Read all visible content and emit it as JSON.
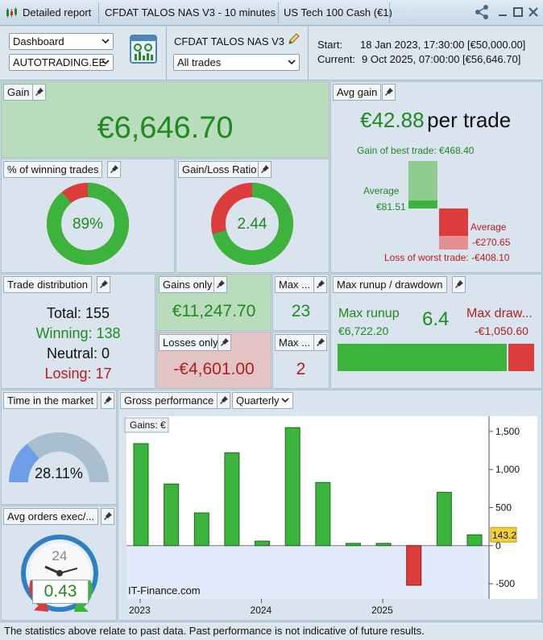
{
  "titlebar": {
    "report": "Detailed report",
    "strategy": "CFDAT TALOS NAS V3 - 10 minutes",
    "instrument": "US Tech 100 Cash (€1)"
  },
  "header": {
    "view_select": "Dashboard",
    "account_select": "AUTOTRADING.EE",
    "strategy_name": "CFDAT TALOS NAS V3",
    "trades_select": "All trades",
    "start_label": "Start:",
    "start_value": "18 Jan 2023, 17:30:00  [€50,000.00]",
    "current_label": "Current:",
    "current_value": "9 Oct 2025, 07:00:00  [€56,646.70]"
  },
  "gain": {
    "title": "Gain",
    "value": "€6,646.70"
  },
  "avg_gain": {
    "title": "Avg gain",
    "value": "€42.88",
    "suffix": "per trade",
    "best_label": "Gain of best trade: €468.40",
    "avg_pos_label": "Average",
    "avg_pos_value": "€81.51",
    "avg_neg_label": "Average",
    "avg_neg_value": "-€270.65",
    "worst_label": "Loss of worst trade: -€408.10",
    "best": 468.4,
    "avg_pos": 81.51,
    "avg_neg": 270.65,
    "worst": 408.1
  },
  "win_pct": {
    "title": "% of winning trades",
    "value": "89%",
    "fraction": 0.89
  },
  "gl_ratio": {
    "title": "Gain/Loss Ratio",
    "value": "2.44",
    "fraction": 0.709
  },
  "distribution": {
    "title": "Trade distribution",
    "total": "Total: 155",
    "winning": "Winning: 138",
    "neutral": "Neutral: 0",
    "losing": "Losing: 17"
  },
  "gains_only": {
    "title": "Gains only",
    "value": "€11,247.70"
  },
  "losses_only": {
    "title": "Losses only",
    "value": "-€4,601.00"
  },
  "max1": {
    "title": "Max ...",
    "value": "23"
  },
  "max2": {
    "title": "Max ...",
    "value": "2"
  },
  "runup": {
    "title": "Max runup / drawdown",
    "runup_label": "Max runup",
    "runup_value": "€6,722.20",
    "ratio": "6.4",
    "dd_label": "Max draw...",
    "dd_value": "-€1,050.60",
    "runup_amount": 6722.2,
    "dd_amount": 1050.6
  },
  "time_market": {
    "title": "Time in the market",
    "value": "28.11%",
    "fraction": 0.2811
  },
  "avg_orders": {
    "title": "Avg orders exec/...",
    "clock_label": "24",
    "value": "0.43"
  },
  "gross": {
    "title": "Gross performance",
    "period_select": "Quarterly",
    "legend": "Gains: €",
    "watermark": "IT-Finance.com",
    "current_value_label": "143.2"
  },
  "chart_data": {
    "type": "bar",
    "title": "",
    "ylabel": "Gains: €",
    "xlabel": "",
    "ylim": [
      -700,
      1700
    ],
    "yticks": [
      1500,
      1000,
      500,
      0,
      -500
    ],
    "ytick_labels": [
      "1,500",
      "1,000",
      "500",
      "0",
      "-500"
    ],
    "xtick_labels": [
      "2023",
      "2024",
      "2025"
    ],
    "xtick_positions": [
      0,
      4,
      8
    ],
    "categories": [
      "2023 Q1",
      "2023 Q2",
      "2023 Q3",
      "2023 Q4",
      "2024 Q1",
      "2024 Q2",
      "2024 Q3",
      "2024 Q4",
      "2025 Q1",
      "2025 Q2",
      "2025 Q3",
      "2025 Q4"
    ],
    "values": [
      1340,
      810,
      430,
      1220,
      60,
      1550,
      830,
      30,
      30,
      -520,
      700,
      143.2
    ],
    "colors": {
      "positive": "#3cb33c",
      "negative": "#dd3c3c"
    }
  },
  "footer": {
    "text": "The statistics above relate to past data. Past performance is not indicative of future results."
  },
  "colors": {
    "green": "#3cb33c",
    "red": "#dd3c3c",
    "text_green": "#1f8a1f",
    "text_red": "#b51d1d"
  }
}
